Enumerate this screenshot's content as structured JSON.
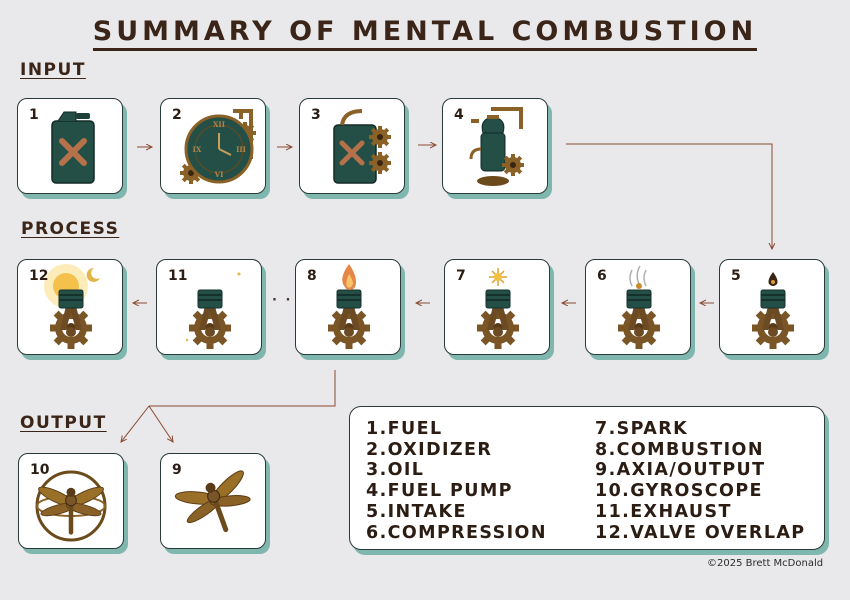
{
  "title": "SUMMARY OF MENTAL COMBUSTION",
  "sections": {
    "input": "INPUT",
    "process": "PROCESS",
    "output": "OUTPUT"
  },
  "cards": [
    {
      "num": "1",
      "icon": "fuel-can-icon"
    },
    {
      "num": "2",
      "icon": "clock-gear-icon"
    },
    {
      "num": "3",
      "icon": "oil-can-icon"
    },
    {
      "num": "4",
      "icon": "fuel-pump-icon"
    },
    {
      "num": "5",
      "icon": "piston-drop-icon"
    },
    {
      "num": "6",
      "icon": "piston-steam-icon"
    },
    {
      "num": "7",
      "icon": "piston-spark-icon"
    },
    {
      "num": "8",
      "icon": "piston-flame-icon"
    },
    {
      "num": "11",
      "icon": "piston-moon-icon"
    },
    {
      "num": "12",
      "icon": "piston-sun-icon"
    },
    {
      "num": "10",
      "icon": "dragonfly-gyroscope-icon"
    },
    {
      "num": "9",
      "icon": "dragonfly-icon"
    }
  ],
  "legend": {
    "left": [
      "1.FUEL",
      "2.OXIDIZER",
      "3.OIL",
      "4.FUEL PUMP",
      "5.INTAKE",
      "6.COMPRESSION"
    ],
    "right": [
      "7.SPARK",
      "8.COMBUSTION",
      "9.AXIA/OUTPUT",
      "10.GYROSCOPE",
      "11.EXHAUST",
      "12.VALVE OVERLAP"
    ]
  },
  "ellipsis": "· ·",
  "copyright": "©2025 Brett McDonald",
  "colors": {
    "accent": "#7fb7ae",
    "arrow": "#8a4a32",
    "brass": "#8a6126",
    "green": "#2c5a4e"
  }
}
